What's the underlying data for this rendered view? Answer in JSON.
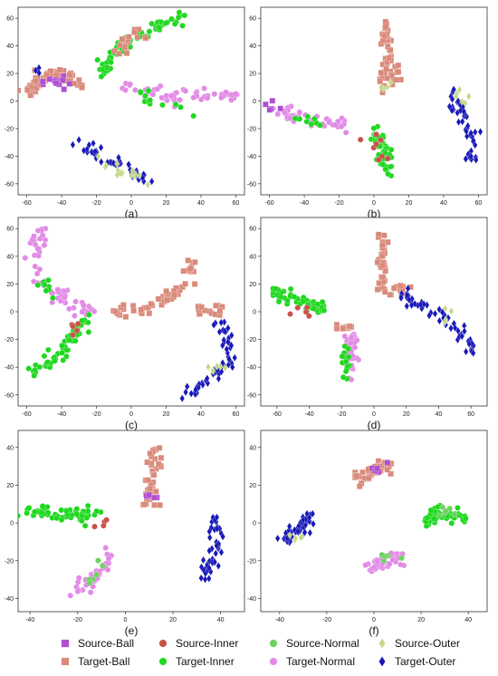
{
  "colors": {
    "Source-Ball": "#b04fd0",
    "Target-Ball": "#d98a7a",
    "Source-Inner": "#c9524a",
    "Target-Inner": "#1fd81f",
    "Source-Normal": "#6ed160",
    "Target-Normal": "#e28ae6",
    "Source-Outer": "#c4d98a",
    "Target-Outer": "#1818b8"
  },
  "chart_data": [
    {
      "type": "scatter",
      "panel_label": "(a)",
      "xlim": [
        -65,
        65
      ],
      "ylim": [
        -68,
        68
      ],
      "xticks": [
        -60,
        -40,
        -20,
        0,
        20,
        40,
        60
      ],
      "yticks": [
        -60,
        -40,
        -20,
        0,
        20,
        40,
        60
      ],
      "clusters": [
        {
          "series": "Target-Ball",
          "path": [
            [
              -60,
              5
            ],
            [
              -52,
              15
            ],
            [
              -44,
              20
            ],
            [
              -36,
              18
            ],
            [
              -28,
              12
            ]
          ],
          "n": 60
        },
        {
          "series": "Source-Ball",
          "path": [
            [
              -50,
              12
            ],
            [
              -40,
              15
            ],
            [
              -32,
              15
            ]
          ],
          "n": 12
        },
        {
          "series": "Target-Outer",
          "path": [
            [
              -55,
              20
            ],
            [
              -50,
              25
            ]
          ],
          "n": 3
        },
        {
          "series": "Target-Inner",
          "path": [
            [
              -20,
              25
            ],
            [
              -10,
              35
            ],
            [
              0,
              45
            ],
            [
              15,
              55
            ],
            [
              28,
              60
            ]
          ],
          "n": 55
        },
        {
          "series": "Target-Inner",
          "path": [
            [
              -18,
              20
            ],
            [
              -12,
              28
            ]
          ],
          "n": 10
        },
        {
          "series": "Target-Ball",
          "path": [
            [
              -8,
              35
            ],
            [
              0,
              45
            ],
            [
              8,
              50
            ]
          ],
          "n": 18
        },
        {
          "series": "Target-Normal",
          "path": [
            [
              -5,
              12
            ],
            [
              10,
              5
            ],
            [
              25,
              3
            ],
            [
              45,
              3
            ],
            [
              60,
              2
            ]
          ],
          "n": 55
        },
        {
          "series": "Target-Inner",
          "path": [
            [
              5,
              5
            ],
            [
              20,
              0
            ],
            [
              35,
              -5
            ]
          ],
          "n": 12
        },
        {
          "series": "Target-Outer",
          "path": [
            [
              -32,
              -30
            ],
            [
              -20,
              -38
            ],
            [
              -8,
              -45
            ],
            [
              5,
              -55
            ],
            [
              10,
              -60
            ]
          ],
          "n": 45
        },
        {
          "series": "Source-Outer",
          "path": [
            [
              -18,
              -45
            ],
            [
              -5,
              -52
            ],
            [
              8,
              -58
            ]
          ],
          "n": 14
        }
      ]
    },
    {
      "type": "scatter",
      "panel_label": "(b)",
      "xlim": [
        -65,
        65
      ],
      "ylim": [
        -68,
        68
      ],
      "xticks": [
        -60,
        -40,
        -20,
        0,
        20,
        40,
        60
      ],
      "yticks": [
        -60,
        -40,
        -20,
        0,
        20,
        40,
        60
      ],
      "clusters": [
        {
          "series": "Target-Ball",
          "path": [
            [
              8,
              58
            ],
            [
              8,
              40
            ],
            [
              7,
              25
            ],
            [
              8,
              12
            ]
          ],
          "n": 40
        },
        {
          "series": "Target-Ball",
          "path": [
            [
              3,
              15
            ],
            [
              10,
              20
            ],
            [
              15,
              15
            ]
          ],
          "n": 12
        },
        {
          "series": "Source-Outer",
          "path": [
            [
              3,
              10
            ],
            [
              12,
              12
            ]
          ],
          "n": 4
        },
        {
          "series": "Target-Normal",
          "path": [
            [
              -60,
              -5
            ],
            [
              -45,
              -12
            ],
            [
              -30,
              -15
            ],
            [
              -15,
              -18
            ]
          ],
          "n": 50
        },
        {
          "series": "Source-Ball",
          "path": [
            [
              -60,
              -3
            ],
            [
              -55,
              -6
            ]
          ],
          "n": 5
        },
        {
          "series": "Target-Inner",
          "path": [
            [
              -45,
              -10
            ],
            [
              -30,
              -16
            ]
          ],
          "n": 8
        },
        {
          "series": "Target-Inner",
          "path": [
            [
              0,
              -20
            ],
            [
              4,
              -30
            ],
            [
              6,
              -42
            ],
            [
              8,
              -52
            ]
          ],
          "n": 55
        },
        {
          "series": "Source-Inner",
          "path": [
            [
              -8,
              -25
            ],
            [
              0,
              -28
            ],
            [
              8,
              -50
            ]
          ],
          "n": 8
        },
        {
          "series": "Target-Outer",
          "path": [
            [
              45,
              5
            ],
            [
              50,
              -5
            ],
            [
              55,
              -20
            ],
            [
              56,
              -35
            ],
            [
              55,
              -48
            ]
          ],
          "n": 45
        },
        {
          "series": "Source-Outer",
          "path": [
            [
              47,
              8
            ],
            [
              52,
              -5
            ]
          ],
          "n": 6
        }
      ]
    },
    {
      "type": "scatter",
      "panel_label": "(c)",
      "xlim": [
        -65,
        65
      ],
      "ylim": [
        -68,
        68
      ],
      "xticks": [
        -60,
        -40,
        -20,
        0,
        20,
        40,
        60
      ],
      "yticks": [
        -60,
        -40,
        -20,
        0,
        20,
        40,
        60
      ],
      "clusters": [
        {
          "series": "Target-Normal",
          "path": [
            [
              -52,
              60
            ],
            [
              -55,
              45
            ],
            [
              -55,
              30
            ],
            [
              -50,
              18
            ],
            [
              -40,
              10
            ],
            [
              -30,
              2
            ],
            [
              -22,
              -3
            ]
          ],
          "n": 60
        },
        {
          "series": "Target-Inner",
          "path": [
            [
              -55,
              25
            ],
            [
              -45,
              12
            ]
          ],
          "n": 8
        },
        {
          "series": "Target-Inner",
          "path": [
            [
              -25,
              -5
            ],
            [
              -32,
              -15
            ],
            [
              -40,
              -28
            ],
            [
              -48,
              -38
            ],
            [
              -57,
              -46
            ]
          ],
          "n": 55
        },
        {
          "series": "Source-Inner",
          "path": [
            [
              -38,
              -20
            ],
            [
              -30,
              -10
            ]
          ],
          "n": 5
        },
        {
          "series": "Target-Ball",
          "path": [
            [
              -8,
              0
            ],
            [
              10,
              3
            ],
            [
              22,
              10
            ],
            [
              30,
              22
            ],
            [
              36,
              35
            ]
          ],
          "n": 50
        },
        {
          "series": "Target-Ball",
          "path": [
            [
              35,
              5
            ],
            [
              45,
              3
            ],
            [
              55,
              2
            ]
          ],
          "n": 15
        },
        {
          "series": "Target-Outer",
          "path": [
            [
              50,
              -5
            ],
            [
              55,
              -15
            ],
            [
              58,
              -30
            ],
            [
              50,
              -45
            ],
            [
              40,
              -55
            ],
            [
              32,
              -62
            ]
          ],
          "n": 55
        },
        {
          "series": "Source-Outer",
          "path": [
            [
              45,
              -45
            ],
            [
              52,
              -40
            ]
          ],
          "n": 6
        }
      ]
    },
    {
      "type": "scatter",
      "panel_label": "(d)",
      "xlim": [
        -70,
        70
      ],
      "ylim": [
        -68,
        68
      ],
      "xticks": [
        -60,
        -40,
        -20,
        0,
        20,
        40,
        60
      ],
      "yticks": [
        -60,
        -40,
        -20,
        0,
        20,
        40,
        60
      ],
      "clusters": [
        {
          "series": "Target-Inner",
          "path": [
            [
              -62,
              14
            ],
            [
              -50,
              10
            ],
            [
              -40,
              5
            ],
            [
              -30,
              2
            ]
          ],
          "n": 55
        },
        {
          "series": "Source-Inner",
          "path": [
            [
              -50,
              0
            ],
            [
              -40,
              -2
            ]
          ],
          "n": 5
        },
        {
          "series": "Target-Ball",
          "path": [
            [
              -22,
              -8
            ],
            [
              -16,
              -12
            ]
          ],
          "n": 8
        },
        {
          "series": "Target-Normal",
          "path": [
            [
              -15,
              -15
            ],
            [
              -14,
              -25
            ],
            [
              -14,
              -35
            ],
            [
              -15,
              -45
            ]
          ],
          "n": 45
        },
        {
          "series": "Target-Inner",
          "path": [
            [
              -18,
              -25
            ],
            [
              -17,
              -40
            ],
            [
              -17,
              -52
            ]
          ],
          "n": 14
        },
        {
          "series": "Target-Ball",
          "path": [
            [
              6,
              58
            ],
            [
              6,
              45
            ],
            [
              5,
              32
            ],
            [
              5,
              20
            ],
            [
              8,
              15
            ]
          ],
          "n": 40
        },
        {
          "series": "Target-Ball",
          "path": [
            [
              12,
              18
            ],
            [
              20,
              14
            ]
          ],
          "n": 8
        },
        {
          "series": "Target-Outer",
          "path": [
            [
              15,
              12
            ],
            [
              30,
              5
            ],
            [
              45,
              -5
            ],
            [
              55,
              -18
            ],
            [
              62,
              -32
            ]
          ],
          "n": 55
        },
        {
          "series": "Source-Outer",
          "path": [
            [
              40,
              3
            ],
            [
              50,
              -8
            ]
          ],
          "n": 4
        }
      ]
    },
    {
      "type": "scatter",
      "panel_label": "(e)",
      "xlim": [
        -45,
        50
      ],
      "ylim": [
        -47,
        49
      ],
      "xticks": [
        -40,
        -20,
        0,
        20,
        40
      ],
      "yticks": [
        -40,
        -20,
        0,
        20,
        40
      ],
      "clusters": [
        {
          "series": "Target-Inner",
          "path": [
            [
              -43,
              6
            ],
            [
              -30,
              5
            ],
            [
              -20,
              5
            ],
            [
              -12,
              3
            ]
          ],
          "n": 55
        },
        {
          "series": "Source-Inner",
          "path": [
            [
              -12,
              2
            ],
            [
              -10,
              -1
            ]
          ],
          "n": 4
        },
        {
          "series": "Target-Ball",
          "path": [
            [
              12,
              40
            ],
            [
              11,
              30
            ],
            [
              10,
              20
            ],
            [
              10,
              12
            ],
            [
              12,
              9
            ]
          ],
          "n": 45
        },
        {
          "series": "Source-Ball",
          "path": [
            [
              9,
              12
            ],
            [
              13,
              14
            ]
          ],
          "n": 5
        },
        {
          "series": "Target-Normal",
          "path": [
            [
              -6,
              -15
            ],
            [
              -10,
              -25
            ],
            [
              -16,
              -32
            ],
            [
              -22,
              -38
            ]
          ],
          "n": 40
        },
        {
          "series": "Source-Normal",
          "path": [
            [
              -8,
              -18
            ],
            [
              -20,
              -38
            ]
          ],
          "n": 6
        },
        {
          "series": "Target-Outer",
          "path": [
            [
              37,
              3
            ],
            [
              39,
              -8
            ],
            [
              36,
              -20
            ],
            [
              34,
              -28
            ]
          ],
          "n": 45
        }
      ]
    },
    {
      "type": "scatter",
      "panel_label": "(f)",
      "xlim": [
        -48,
        48
      ],
      "ylim": [
        -47,
        49
      ],
      "xticks": [
        -40,
        -20,
        0,
        20,
        40
      ],
      "yticks": [
        -40,
        -20,
        0,
        20,
        40
      ],
      "clusters": [
        {
          "series": "Target-Ball",
          "path": [
            [
              -8,
              22
            ],
            [
              -2,
              26
            ],
            [
              3,
              30
            ],
            [
              8,
              28
            ]
          ],
          "n": 45
        },
        {
          "series": "Source-Ball",
          "path": [
            [
              0,
              27
            ],
            [
              6,
              31
            ]
          ],
          "n": 5
        },
        {
          "series": "Target-Inner",
          "path": [
            [
              22,
              -2
            ],
            [
              26,
              5
            ],
            [
              32,
              5
            ],
            [
              38,
              3
            ]
          ],
          "n": 45
        },
        {
          "series": "Source-Normal",
          "path": [
            [
              26,
              1
            ],
            [
              32,
              8
            ]
          ],
          "n": 6
        },
        {
          "series": "Target-Normal",
          "path": [
            [
              -2,
              -24
            ],
            [
              5,
              -20
            ],
            [
              12,
              -18
            ]
          ],
          "n": 42
        },
        {
          "series": "Source-Normal",
          "path": [
            [
              2,
              -20
            ],
            [
              12,
              -16
            ]
          ],
          "n": 6
        },
        {
          "series": "Target-Outer",
          "path": [
            [
              -38,
              -10
            ],
            [
              -33,
              -5
            ],
            [
              -28,
              0
            ],
            [
              -26,
              5
            ]
          ],
          "n": 42
        },
        {
          "series": "Source-Outer",
          "path": [
            [
              -36,
              -10
            ],
            [
              -30,
              -6
            ]
          ],
          "n": 5
        }
      ]
    }
  ],
  "legend": [
    {
      "label": "Source-Ball",
      "marker": "square"
    },
    {
      "label": "Source-Inner",
      "marker": "circle"
    },
    {
      "label": "Source-Normal",
      "marker": "circle"
    },
    {
      "label": "Source-Outer",
      "marker": "diamond"
    },
    {
      "label": "Target-Ball",
      "marker": "square"
    },
    {
      "label": "Target-Inner",
      "marker": "circle"
    },
    {
      "label": "Target-Normal",
      "marker": "circle"
    },
    {
      "label": "Target-Outer",
      "marker": "diamond"
    }
  ]
}
